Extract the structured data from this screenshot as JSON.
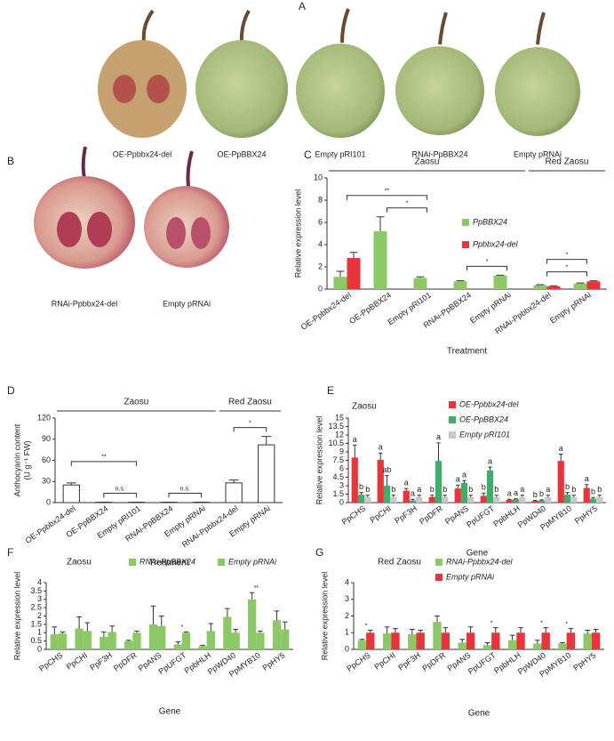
{
  "panels": [
    {
      "letter": "A",
      "labels": [
        "OE-Ppbbx24-del",
        "OE-PpBBX24",
        "Empty pRI101",
        "RNAi-PpBBX24",
        "Empty pRNAi"
      ]
    },
    {
      "letter": "B",
      "labels": [
        "RNAi-Ppbbx24-del",
        "Empty pRNAi"
      ]
    }
  ],
  "chart_data": [
    {
      "type": "bar",
      "panel": "C",
      "ylabel": "Relative expression level",
      "xlabel": "Treatment",
      "categories": [
        "OE-Ppbbx24-del",
        "OE-PpBBX24",
        "Empty pRI101",
        "RNAi-PpBBX24",
        "Empty pRNAi",
        "RNAi-Ppbbx24-del",
        "Empty pRNAi"
      ],
      "series": [
        {
          "name": "PpBBX24",
          "color": "#8dc866",
          "values": [
            1.1,
            5.2,
            1.0,
            0.7,
            1.2,
            0.35,
            0.5
          ],
          "errors": [
            0.5,
            1.3,
            0.1,
            0.05,
            0.05,
            0.05,
            0.05
          ]
        },
        {
          "name": "Ppbbx24-del",
          "color": "#e8343b",
          "values": [
            2.8,
            null,
            null,
            null,
            null,
            0.25,
            0.7
          ],
          "errors": [
            0.5,
            null,
            null,
            null,
            null,
            0.05,
            0.05
          ]
        }
      ],
      "groups": [
        {
          "label": "Zaosu",
          "from": 0,
          "to": 4
        },
        {
          "label": "Red Zaosu",
          "from": 5,
          "to": 6
        }
      ],
      "brackets": [
        {
          "text": "*",
          "from": 1,
          "to": 2
        },
        {
          "text": "**",
          "from": 0,
          "to": 2
        },
        {
          "text": "*",
          "from": 3,
          "to": 4
        },
        {
          "text": "*",
          "from": 5,
          "to": 6
        },
        {
          "text": "*",
          "from": 5,
          "to": 6
        }
      ],
      "ylim": [
        0,
        10
      ],
      "yticks": [
        0,
        2,
        4,
        6,
        8,
        10
      ]
    },
    {
      "type": "bar",
      "panel": "D",
      "ylabel": [
        "Anthocyanin content",
        "(U g⁻¹ FW)"
      ],
      "xlabel": "Treatment",
      "categories": [
        "OE-Ppbbx24-del",
        "OE-PpBBX24",
        "Empty pRI101",
        "RNAi-PpBBX24",
        "Empty pRNAi",
        "RNAi-Ppbbx24-del",
        "Empty pRNAi"
      ],
      "series": [
        {
          "color": "#ffffff",
          "values": [
            25,
            0.5,
            0.5,
            0.5,
            0.5,
            28,
            82
          ],
          "errors": [
            3,
            0.2,
            0.2,
            0.2,
            0.2,
            4,
            12
          ]
        }
      ],
      "groups": [
        {
          "label": "Zaosu",
          "from": 0,
          "to": 4
        },
        {
          "label": "Red Zaosu",
          "from": 5,
          "to": 6
        }
      ],
      "brackets": [
        {
          "text": "n.s.",
          "from": 1,
          "to": 2
        },
        {
          "text": "**",
          "from": 0,
          "to": 2
        },
        {
          "text": "n.s.",
          "from": 3,
          "to": 4
        },
        {
          "text": "*",
          "from": 5,
          "to": 6
        }
      ],
      "ylim": [
        0,
        120
      ],
      "yticks": [
        0,
        30,
        60,
        90,
        120
      ]
    },
    {
      "type": "bar",
      "panel": "E",
      "title": "Zaosu",
      "ylabel": "Relative expression level",
      "xlabel": "Gene",
      "categories": [
        "PpCHS",
        "PpCHI",
        "PpF3H",
        "PpDFR",
        "PpANS",
        "PpUFGT",
        "PpbHLH",
        "PpWD40",
        "PpMYB10",
        "PpHY5"
      ],
      "series": [
        {
          "name": "OE-Ppbbx24-del",
          "color": "#e8343b",
          "values": [
            8,
            7.6,
            2.1,
            1.0,
            2.5,
            1.2,
            0.5,
            0.3,
            7.4,
            2.6
          ],
          "errors": [
            2.2,
            1.2,
            0.4,
            0.3,
            0.6,
            0.5,
            0.1,
            0.1,
            1.2,
            0.6
          ],
          "letters": [
            "a",
            "a",
            "a",
            "b",
            "a",
            "b",
            "a",
            "b",
            "a",
            "a"
          ]
        },
        {
          "name": "OE-PpBBX24",
          "color": "#3fae6a",
          "values": [
            1.4,
            3.0,
            0.4,
            7.4,
            3.5,
            5.7,
            0.6,
            0.4,
            1.4,
            0.7
          ],
          "errors": [
            0.4,
            1.8,
            0.2,
            3.2,
            0.4,
            0.6,
            0.1,
            0.1,
            0.4,
            0.2
          ],
          "letters": [
            "b",
            "ab",
            "a",
            "a",
            "a",
            "a",
            "a",
            "b",
            "b",
            "b"
          ]
        },
        {
          "name": "Empty pRI101",
          "color": "#c8c8c8",
          "values": [
            1.0,
            1.0,
            1.0,
            1.0,
            1.0,
            1.0,
            1.0,
            1.0,
            1.0,
            1.0
          ],
          "errors": [
            0.3,
            0.3,
            0.3,
            0.3,
            0.3,
            0.3,
            0.3,
            0.3,
            0.3,
            0.3
          ],
          "letters": [
            "b",
            "b",
            "a",
            "b",
            "b",
            "b",
            "a",
            "a",
            "b",
            "b"
          ]
        }
      ],
      "ylim": [
        0,
        15
      ],
      "yticks": [
        0,
        1.5,
        3,
        4.5,
        6,
        7.5,
        9,
        10.5,
        12,
        13.5,
        15
      ]
    },
    {
      "type": "bar",
      "panel": "F",
      "title": "Zaosu",
      "ylabel": "Relative expression level",
      "xlabel": "Gene",
      "categories": [
        "PpCHS",
        "PpCHI",
        "PpF3H",
        "PpDFR",
        "PpANS",
        "PpUFGT",
        "PpbHLH",
        "PpWD40",
        "PpMYB10",
        "PpHY5"
      ],
      "series": [
        {
          "name": "RNAi-PpBBX24",
          "color": "#8dc866",
          "values": [
            0.9,
            1.25,
            0.75,
            0.5,
            1.5,
            0.3,
            0.2,
            1.95,
            3.0,
            1.75
          ],
          "errors": [
            0.45,
            0.7,
            0.3,
            0.05,
            1.1,
            0.15,
            0.05,
            0.5,
            0.4,
            0.55
          ]
        },
        {
          "name": "Empty pRNAi",
          "color": "#8dc866",
          "values": [
            0.95,
            1.1,
            1.05,
            1.0,
            1.4,
            1.0,
            1.1,
            1.0,
            1.0,
            1.2
          ],
          "errors": [
            0.1,
            0.5,
            0.35,
            0.1,
            0.6,
            0.05,
            0.45,
            0.2,
            0.1,
            0.45
          ]
        }
      ],
      "annotations": [
        {
          "text": "*",
          "category": 5
        },
        {
          "text": "**",
          "category": 8
        }
      ],
      "ylim": [
        0,
        4
      ],
      "yticks": [
        0,
        0.5,
        1,
        1.5,
        2,
        2.5,
        3,
        3.5,
        4
      ]
    },
    {
      "type": "bar",
      "panel": "G",
      "title": "Red Zaosu",
      "ylabel": "Relative expression level",
      "xlabel": "Gene",
      "categories": [
        "PpCHS",
        "PpCHI",
        "PpF3H",
        "PpDFR",
        "PpANS",
        "PpUFGT",
        "PpbHLH",
        "PpWD40",
        "PpMYB10",
        "PpHY5"
      ],
      "series": [
        {
          "name": "RNAi-Ppbbx24-del",
          "color": "#8dc866",
          "values": [
            0.55,
            0.95,
            0.9,
            1.65,
            0.4,
            0.25,
            0.55,
            0.35,
            0.35,
            0.95
          ],
          "errors": [
            0.05,
            0.4,
            0.3,
            0.35,
            0.2,
            0.15,
            0.3,
            0.2,
            0.05,
            0.2
          ]
        },
        {
          "name": "Empty pRNAi",
          "color": "#e8343b",
          "values": [
            1.0,
            1.0,
            1.0,
            1.0,
            1.0,
            1.0,
            1.0,
            1.0,
            1.0,
            1.0
          ],
          "errors": [
            0.15,
            0.25,
            0.15,
            0.3,
            0.35,
            0.3,
            0.3,
            0.3,
            0.25,
            0.2
          ]
        }
      ],
      "annotations": [
        {
          "text": "*",
          "category": 0
        },
        {
          "text": "*",
          "category": 5
        },
        {
          "text": "*",
          "category": 7
        },
        {
          "text": "*",
          "category": 8
        }
      ],
      "ylim": [
        0,
        4
      ],
      "yticks": [
        0,
        1,
        2,
        3,
        4
      ]
    }
  ]
}
